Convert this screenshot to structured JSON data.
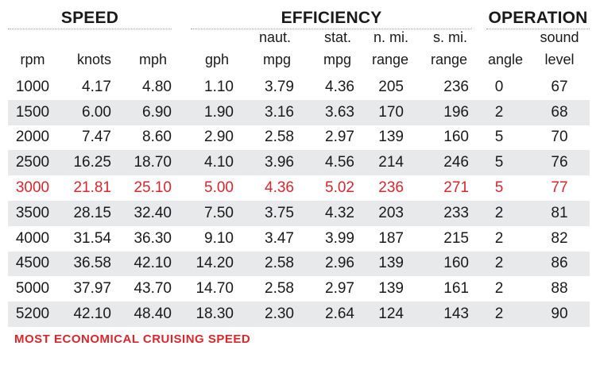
{
  "groups": {
    "speed": "SPEED",
    "efficiency": "EFFICIENCY",
    "operation": "OPERATION"
  },
  "headers": {
    "rpm": "rpm",
    "knots": "knots",
    "mph": "mph",
    "gph": "gph",
    "naut_top": "naut.",
    "naut_bottom": "mpg",
    "stat_top": "stat.",
    "stat_bottom": "mpg",
    "nmi_top": "n. mi.",
    "nmi_bottom": "range",
    "smi_top": "s. mi.",
    "smi_bottom": "range",
    "angle": "angle",
    "sound_top": "sound",
    "sound_bottom": "level"
  },
  "highlight_color": "#e0242a",
  "rows": [
    {
      "rpm": "1000",
      "knots": "4.17",
      "mph": "4.80",
      "gph": "1.10",
      "naut_mpg": "3.79",
      "stat_mpg": "4.36",
      "nmi_range": "205",
      "smi_range": "236",
      "angle": "0",
      "sound": "67",
      "highlight": false
    },
    {
      "rpm": "1500",
      "knots": "6.00",
      "mph": "6.90",
      "gph": "1.90",
      "naut_mpg": "3.16",
      "stat_mpg": "3.63",
      "nmi_range": "170",
      "smi_range": "196",
      "angle": "2",
      "sound": "68",
      "highlight": false
    },
    {
      "rpm": "2000",
      "knots": "7.47",
      "mph": "8.60",
      "gph": "2.90",
      "naut_mpg": "2.58",
      "stat_mpg": "2.97",
      "nmi_range": "139",
      "smi_range": "160",
      "angle": "5",
      "sound": "70",
      "highlight": false
    },
    {
      "rpm": "2500",
      "knots": "16.25",
      "mph": "18.70",
      "gph": "4.10",
      "naut_mpg": "3.96",
      "stat_mpg": "4.56",
      "nmi_range": "214",
      "smi_range": "246",
      "angle": "5",
      "sound": "76",
      "highlight": false
    },
    {
      "rpm": "3000",
      "knots": "21.81",
      "mph": "25.10",
      "gph": "5.00",
      "naut_mpg": "4.36",
      "stat_mpg": "5.02",
      "nmi_range": "236",
      "smi_range": "271",
      "angle": "5",
      "sound": "77",
      "highlight": true
    },
    {
      "rpm": "3500",
      "knots": "28.15",
      "mph": "32.40",
      "gph": "7.50",
      "naut_mpg": "3.75",
      "stat_mpg": "4.32",
      "nmi_range": "203",
      "smi_range": "233",
      "angle": "2",
      "sound": "81",
      "highlight": false
    },
    {
      "rpm": "4000",
      "knots": "31.54",
      "mph": "36.30",
      "gph": "9.10",
      "naut_mpg": "3.47",
      "stat_mpg": "3.99",
      "nmi_range": "187",
      "smi_range": "215",
      "angle": "2",
      "sound": "82",
      "highlight": false
    },
    {
      "rpm": "4500",
      "knots": "36.58",
      "mph": "42.10",
      "gph": "14.20",
      "naut_mpg": "2.58",
      "stat_mpg": "2.96",
      "nmi_range": "139",
      "smi_range": "160",
      "angle": "2",
      "sound": "86",
      "highlight": false
    },
    {
      "rpm": "5000",
      "knots": "37.97",
      "mph": "43.70",
      "gph": "14.70",
      "naut_mpg": "2.58",
      "stat_mpg": "2.97",
      "nmi_range": "139",
      "smi_range": "161",
      "angle": "2",
      "sound": "88",
      "highlight": false
    },
    {
      "rpm": "5200",
      "knots": "42.10",
      "mph": "48.40",
      "gph": "18.30",
      "naut_mpg": "2.30",
      "stat_mpg": "2.64",
      "nmi_range": "124",
      "smi_range": "143",
      "angle": "2",
      "sound": "90",
      "highlight": false
    }
  ],
  "footnote": "MOST ECONOMICAL CRUISING SPEED"
}
